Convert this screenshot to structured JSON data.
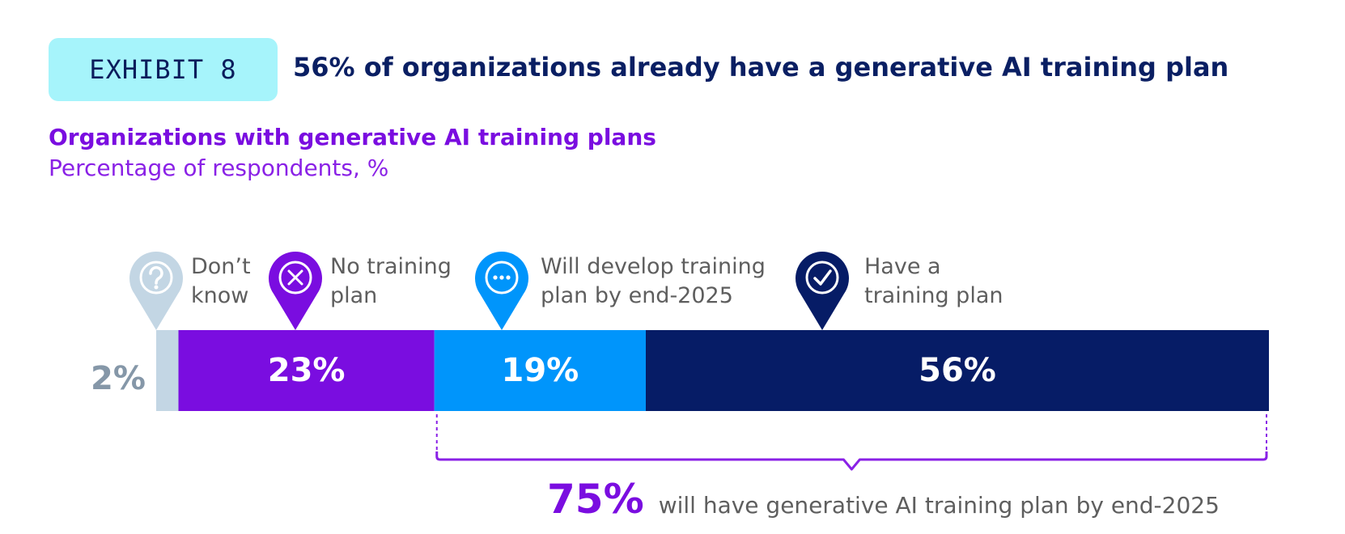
{
  "exhibit": {
    "label": "EXHIBIT 8"
  },
  "headline": "56% of organizations already have a generative AI training plan",
  "colors": {
    "dont_know": "#c3d6e4",
    "no_plan": "#7a0de0",
    "will_develop": "#0095fb",
    "have_plan": "#061c66",
    "bracket": "#8a21e6",
    "exhibit_bg": "#a6f4fb"
  },
  "chart_data": {
    "type": "bar",
    "orientation": "horizontal-stacked",
    "title": "Organizations with generative AI training plans",
    "subtitle": "Percentage of respondents, %",
    "categories": [
      "Don’t know",
      "No training plan",
      "Will develop training plan by end-2025",
      "Have a training plan"
    ],
    "values": [
      2,
      23,
      19,
      56
    ],
    "value_labels": [
      "2%",
      "23%",
      "19%",
      "56%"
    ],
    "category_label_lines": [
      [
        "Don’t",
        "know"
      ],
      [
        "No training",
        "plan"
      ],
      [
        "Will develop training",
        "plan by end-2025"
      ],
      [
        "Have a",
        "training plan"
      ]
    ],
    "icons": [
      "question-icon",
      "x-circle-icon",
      "ellipsis-icon",
      "check-icon"
    ],
    "annotation": {
      "value": "75%",
      "text": "will have generative AI training plan by end-2025",
      "spans_categories": [
        "Will develop training plan by end-2025",
        "Have a training plan"
      ]
    }
  }
}
